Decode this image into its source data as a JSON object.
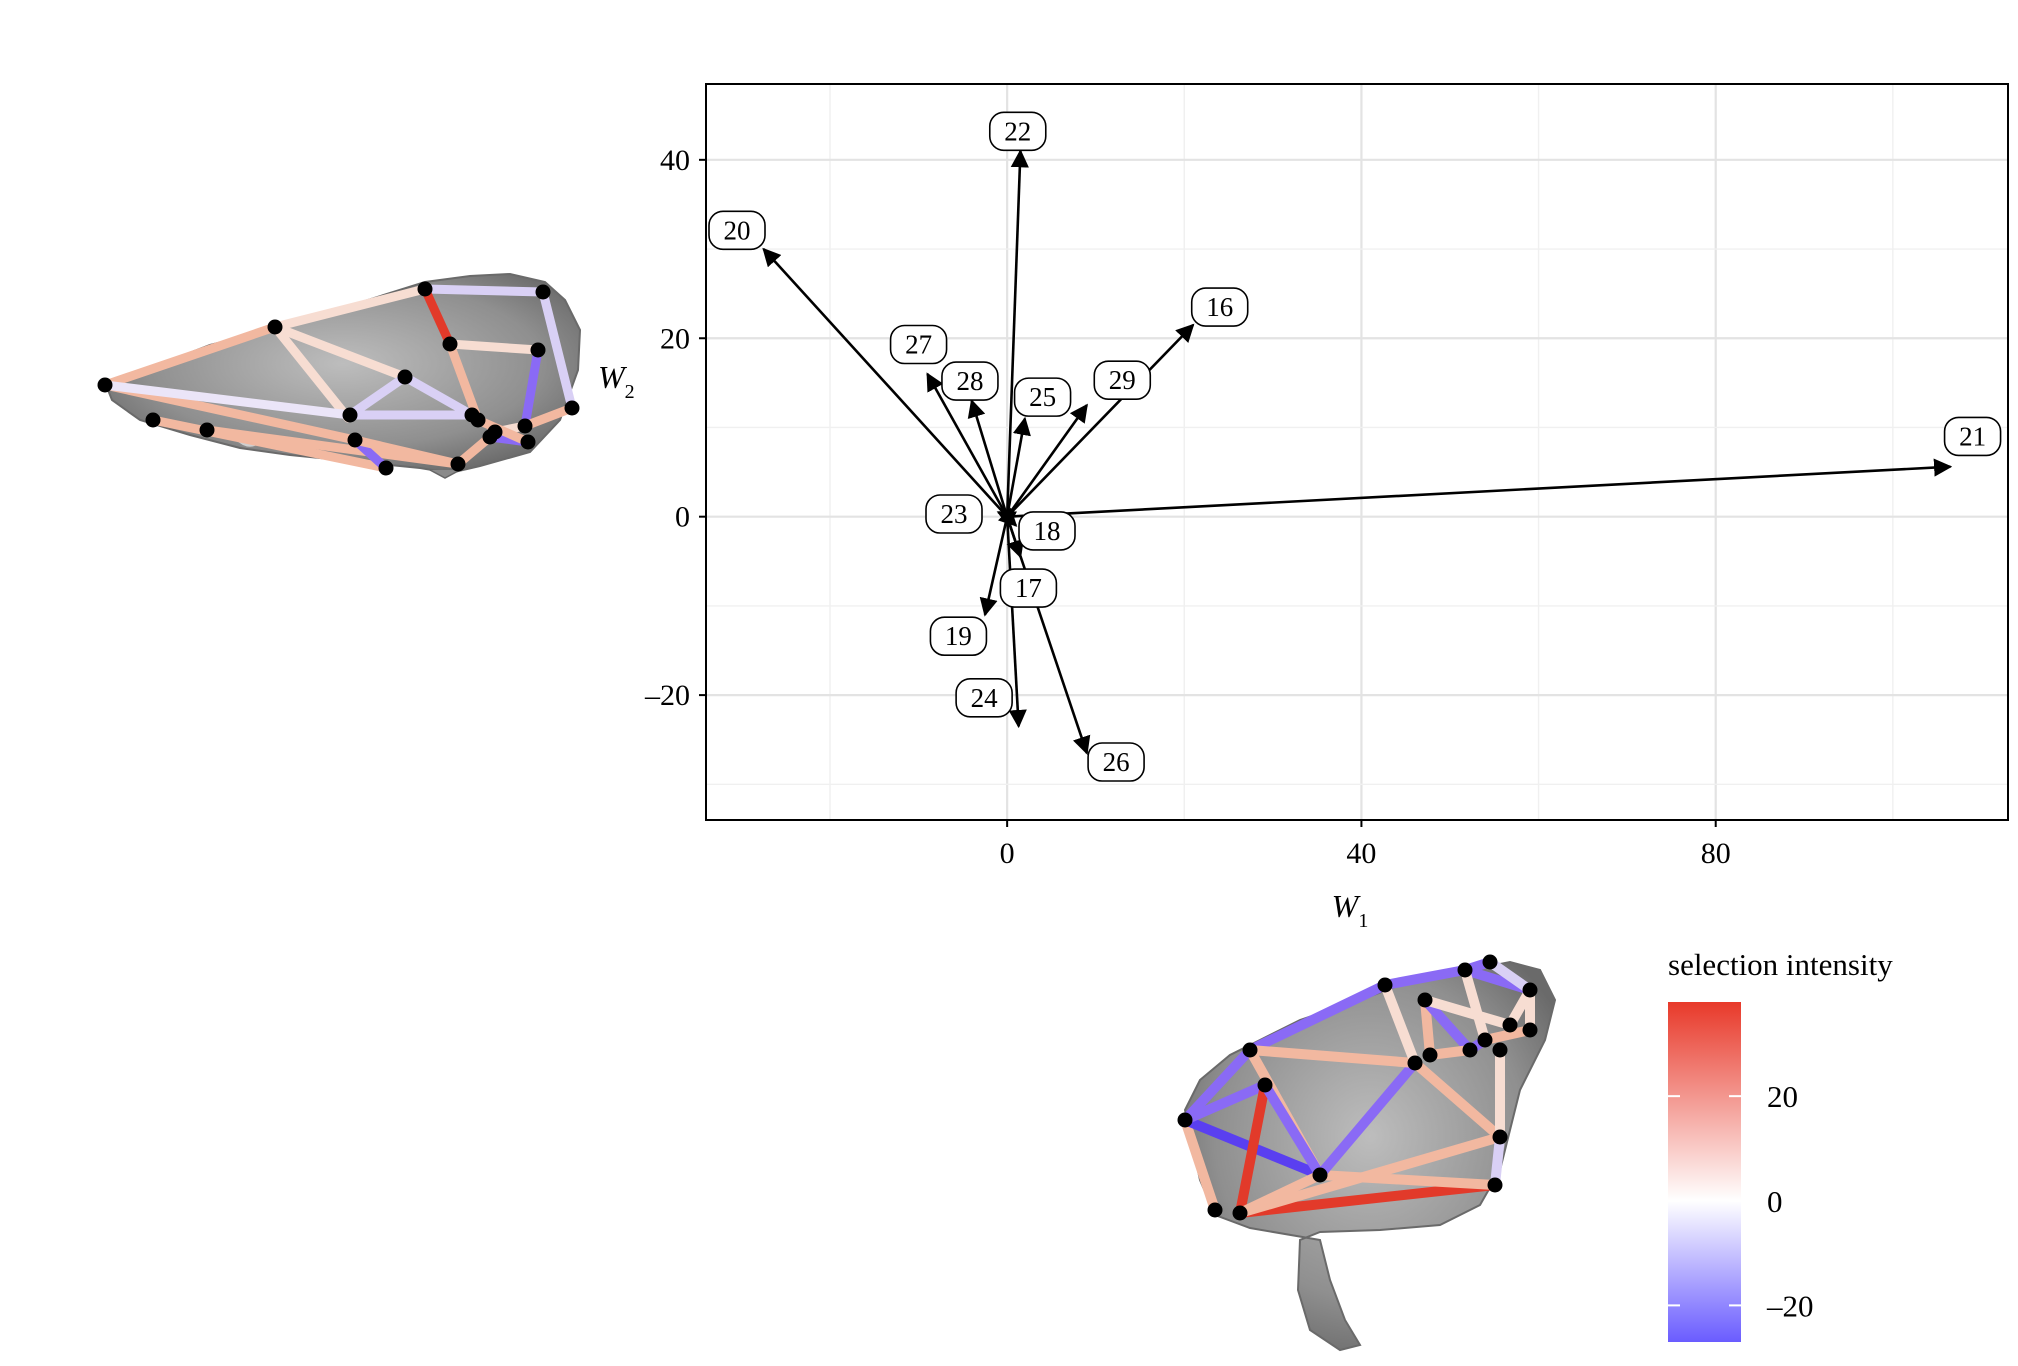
{
  "chart_data": {
    "type": "vector",
    "title": "",
    "xlabel": "W",
    "xlabel_sub": "1",
    "ylabel": "W",
    "ylabel_sub": "2",
    "xlim": [
      -34,
      113
    ],
    "ylim": [
      -34,
      48.5
    ],
    "xticks": [
      0,
      40,
      80
    ],
    "yticks": [
      -20,
      0,
      20,
      40
    ],
    "xtick_labels": [
      "0",
      "40",
      "80"
    ],
    "ytick_labels": [
      "–20",
      "0",
      "20",
      "40"
    ],
    "grid": true,
    "vectors": [
      {
        "id": "16",
        "x": 21.0,
        "y": 21.5,
        "label_x": 24,
        "label_y": 23.5
      },
      {
        "id": "17",
        "x": 1.5,
        "y": -4.5,
        "label_x": 2.4,
        "label_y": -8.0
      },
      {
        "id": "18",
        "x": 1.0,
        "y": -1.0,
        "label_x": 4.5,
        "label_y": -1.6
      },
      {
        "id": "19",
        "x": -2.5,
        "y": -11.0,
        "label_x": -5.5,
        "label_y": -13.4
      },
      {
        "id": "20",
        "x": -27.5,
        "y": 30.0,
        "label_x": -30.5,
        "label_y": 32.1
      },
      {
        "id": "21",
        "x": 106.5,
        "y": 5.6,
        "label_x": 109,
        "label_y": 9.0
      },
      {
        "id": "22",
        "x": 1.5,
        "y": 41.0,
        "label_x": 1.2,
        "label_y": 43.2
      },
      {
        "id": "23",
        "x": -1.0,
        "y": 0.5,
        "label_x": -6.0,
        "label_y": 0.3
      },
      {
        "id": "24",
        "x": 1.3,
        "y": -23.5,
        "label_x": -2.6,
        "label_y": -20.3
      },
      {
        "id": "25",
        "x": 2.0,
        "y": 11.0,
        "label_x": 4.0,
        "label_y": 13.4
      },
      {
        "id": "26",
        "x": 9.0,
        "y": -26.5,
        "label_x": 12.3,
        "label_y": -27.5
      },
      {
        "id": "27",
        "x": -9.0,
        "y": 16.0,
        "label_x": -10.0,
        "label_y": 19.3
      },
      {
        "id": "28",
        "x": -4.0,
        "y": 13.0,
        "label_x": -4.2,
        "label_y": 15.2
      },
      {
        "id": "29",
        "x": 9.0,
        "y": 12.5,
        "label_x": 13.0,
        "label_y": 15.3
      }
    ],
    "legend": {
      "title": "selection intensity",
      "placement": "bottom-right",
      "range": [
        -27,
        38
      ],
      "ticks": [
        20,
        0,
        -20
      ],
      "tick_labels": [
        "20",
        "0",
        "–20"
      ],
      "low_color": "#6a5cff",
      "mid_color": "#ffffff",
      "high_color": "#e8392a"
    }
  },
  "colors": {
    "strong_red": "#e23a2a",
    "light_red": "#f2b8a0",
    "blush": "#f7ddd2",
    "lavender": "#d9d0f5",
    "purple": "#8a6af5",
    "landmark": "#000000",
    "bone_light": "#a9a9a9",
    "bone_dark": "#6f6f6f"
  }
}
